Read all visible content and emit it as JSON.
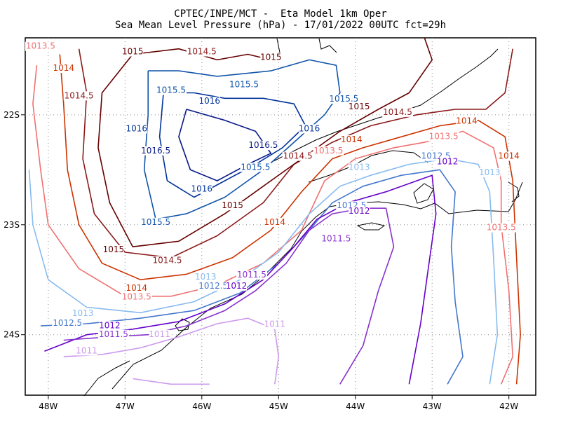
{
  "title": {
    "line1": "CPTEC/INPE/MCT -  Eta Model 1km Oper",
    "line2": "Sea Mean Level Pressure (hPa) - 17/01/2022 00UTC fct=29h"
  },
  "axes": {
    "x_ticks": [
      "48W",
      "47W",
      "46W",
      "45W",
      "44W",
      "43W",
      "42W"
    ],
    "y_ticks": [
      "22S",
      "23S",
      "24S"
    ]
  },
  "colors": {
    "1011": "#cc99ee",
    "1011.5": "#8833cc",
    "1012": "#6600cc",
    "1012.5": "#4477cc",
    "1013": "#88bbee",
    "1013.5": "#f07070",
    "1014": "#cc3300",
    "1014.5": "#8b1a1a",
    "1015": "#660000",
    "1015.5": "#1155aa",
    "1016": "#003399",
    "1016.5": "#0a1a88"
  },
  "contour_labels": [
    {
      "text": "1015",
      "level": "1015",
      "lon": -46.9,
      "lat": -21.45
    },
    {
      "text": "1014.5",
      "level": "1014.5",
      "lon": -46.0,
      "lat": -21.45
    },
    {
      "text": "1015",
      "level": "1015",
      "lon": -45.1,
      "lat": -21.5
    },
    {
      "text": "1013.5",
      "level": "1013.5",
      "lon": -48.1,
      "lat": -21.4
    },
    {
      "text": "1014",
      "level": "1014",
      "lon": -47.8,
      "lat": -21.6
    },
    {
      "text": "1014.5",
      "level": "1014.5",
      "lon": -47.6,
      "lat": -21.85
    },
    {
      "text": "1015.5",
      "level": "1015.5",
      "lon": -46.4,
      "lat": -21.8
    },
    {
      "text": "1015.5",
      "level": "1015.5",
      "lon": -45.45,
      "lat": -21.75
    },
    {
      "text": "1016",
      "level": "1016",
      "lon": -45.9,
      "lat": -21.9
    },
    {
      "text": "1015.5",
      "level": "1015.5",
      "lon": -44.15,
      "lat": -21.88
    },
    {
      "text": "1015",
      "level": "1015",
      "lon": -43.95,
      "lat": -21.95
    },
    {
      "text": "1014.5",
      "level": "1014.5",
      "lon": -43.45,
      "lat": -22.0
    },
    {
      "text": "1014",
      "level": "1014",
      "lon": -42.55,
      "lat": -22.08
    },
    {
      "text": "1016",
      "level": "1016",
      "lon": -46.85,
      "lat": -22.15
    },
    {
      "text": "1016.5",
      "level": "1016.5",
      "lon": -46.6,
      "lat": -22.35
    },
    {
      "text": "1016.5",
      "level": "1016.5",
      "lon": -45.2,
      "lat": -22.3
    },
    {
      "text": "1016",
      "level": "1016",
      "lon": -44.6,
      "lat": -22.15
    },
    {
      "text": "1014",
      "level": "1014",
      "lon": -44.05,
      "lat": -22.25
    },
    {
      "text": "1014.5",
      "level": "1014.5",
      "lon": -44.75,
      "lat": -22.4
    },
    {
      "text": "1013.5",
      "level": "1013.5",
      "lon": -44.35,
      "lat": -22.35
    },
    {
      "text": "1013.5",
      "level": "1013.5",
      "lon": -42.85,
      "lat": -22.22
    },
    {
      "text": "1012.5",
      "level": "1012.5",
      "lon": -42.95,
      "lat": -22.4
    },
    {
      "text": "1012",
      "level": "1012",
      "lon": -42.8,
      "lat": -22.45
    },
    {
      "text": "1013",
      "level": "1013",
      "lon": -43.95,
      "lat": -22.5
    },
    {
      "text": "1014",
      "level": "1014",
      "lon": -42.0,
      "lat": -22.4
    },
    {
      "text": "1013",
      "level": "1013",
      "lon": -42.25,
      "lat": -22.55
    },
    {
      "text": "1015.5",
      "level": "1015.5",
      "lon": -45.3,
      "lat": -22.5
    },
    {
      "text": "1016",
      "level": "1016",
      "lon": -46.0,
      "lat": -22.7
    },
    {
      "text": "1015",
      "level": "1015",
      "lon": -45.6,
      "lat": -22.85
    },
    {
      "text": "1015.5",
      "level": "1015.5",
      "lon": -46.6,
      "lat": -23.0
    },
    {
      "text": "1014",
      "level": "1014",
      "lon": -45.05,
      "lat": -23.0
    },
    {
      "text": "1012.5",
      "level": "1012.5",
      "lon": -44.05,
      "lat": -22.85
    },
    {
      "text": "1012",
      "level": "1012",
      "lon": -43.95,
      "lat": -22.9
    },
    {
      "text": "1011.5",
      "level": "1011.5",
      "lon": -44.25,
      "lat": -23.15
    },
    {
      "text": "1013.5",
      "level": "1013.5",
      "lon": -42.1,
      "lat": -23.05
    },
    {
      "text": "1015",
      "level": "1015",
      "lon": -47.15,
      "lat": -23.25
    },
    {
      "text": "1014.5",
      "level": "1014.5",
      "lon": -46.45,
      "lat": -23.35
    },
    {
      "text": "1013",
      "level": "1013",
      "lon": -45.95,
      "lat": -23.5
    },
    {
      "text": "1011.5",
      "level": "1011.5",
      "lon": -45.35,
      "lat": -23.48
    },
    {
      "text": "1012.5",
      "level": "1012.5",
      "lon": -45.85,
      "lat": -23.58
    },
    {
      "text": "1012",
      "level": "1012",
      "lon": -45.55,
      "lat": -23.58
    },
    {
      "text": "1014",
      "level": "1014",
      "lon": -46.85,
      "lat": -23.6
    },
    {
      "text": "1013.5",
      "level": "1013.5",
      "lon": -46.85,
      "lat": -23.68
    },
    {
      "text": "1013",
      "level": "1013",
      "lon": -47.55,
      "lat": -23.83
    },
    {
      "text": "1012.5",
      "level": "1012.5",
      "lon": -47.75,
      "lat": -23.92
    },
    {
      "text": "1012",
      "level": "1012",
      "lon": -47.2,
      "lat": -23.94
    },
    {
      "text": "1011",
      "level": "1011",
      "lon": -45.05,
      "lat": -23.93
    },
    {
      "text": "1011.5",
      "level": "1011.5",
      "lon": -47.15,
      "lat": -24.02
    },
    {
      "text": "1011",
      "level": "1011",
      "lon": -46.55,
      "lat": -24.02
    },
    {
      "text": "1011",
      "level": "1011",
      "lon": -47.5,
      "lat": -24.17
    }
  ],
  "contours": [
    {
      "level": "1013.5",
      "pts": [
        [
          -48.15,
          -21.55
        ],
        [
          -48.2,
          -21.9
        ],
        [
          -48.1,
          -22.5
        ],
        [
          -48.0,
          -23.0
        ],
        [
          -47.6,
          -23.4
        ],
        [
          -47.0,
          -23.65
        ],
        [
          -46.4,
          -23.65
        ],
        [
          -45.8,
          -23.55
        ],
        [
          -45.2,
          -23.35
        ],
        [
          -44.7,
          -23.05
        ],
        [
          -44.4,
          -22.6
        ],
        [
          -44.0,
          -22.4
        ],
        [
          -43.5,
          -22.3
        ],
        [
          -43.1,
          -22.25
        ],
        [
          -42.6,
          -22.15
        ],
        [
          -42.2,
          -22.3
        ],
        [
          -42.1,
          -22.6
        ],
        [
          -42.1,
          -23.0
        ],
        [
          -42.0,
          -23.6
        ],
        [
          -41.95,
          -24.2
        ],
        [
          -42.1,
          -24.45
        ]
      ]
    },
    {
      "level": "1014",
      "pts": [
        [
          -47.85,
          -21.45
        ],
        [
          -47.8,
          -21.9
        ],
        [
          -47.75,
          -22.5
        ],
        [
          -47.6,
          -23.0
        ],
        [
          -47.3,
          -23.35
        ],
        [
          -46.8,
          -23.5
        ],
        [
          -46.2,
          -23.45
        ],
        [
          -45.6,
          -23.3
        ],
        [
          -45.1,
          -23.05
        ],
        [
          -44.7,
          -22.7
        ],
        [
          -44.3,
          -22.4
        ],
        [
          -43.9,
          -22.3
        ],
        [
          -43.4,
          -22.2
        ],
        [
          -42.9,
          -22.1
        ],
        [
          -42.4,
          -22.05
        ],
        [
          -42.05,
          -22.2
        ],
        [
          -41.95,
          -22.6
        ],
        [
          -41.9,
          -23.3
        ],
        [
          -41.85,
          -24.0
        ],
        [
          -41.9,
          -24.45
        ]
      ]
    },
    {
      "level": "1014.5",
      "pts": [
        [
          -47.6,
          -21.4
        ],
        [
          -47.5,
          -21.8
        ],
        [
          -47.55,
          -22.4
        ],
        [
          -47.4,
          -22.9
        ],
        [
          -47.0,
          -23.25
        ],
        [
          -46.4,
          -23.3
        ],
        [
          -45.8,
          -23.1
        ],
        [
          -45.2,
          -22.8
        ],
        [
          -44.8,
          -22.45
        ],
        [
          -44.3,
          -22.25
        ],
        [
          -43.8,
          -22.1
        ],
        [
          -43.2,
          -22.0
        ],
        [
          -42.7,
          -21.95
        ],
        [
          -42.3,
          -21.95
        ],
        [
          -42.05,
          -21.8
        ],
        [
          -41.95,
          -21.4
        ]
      ]
    },
    {
      "level": "1015",
      "pts": [
        [
          -46.9,
          -21.45
        ],
        [
          -47.3,
          -21.8
        ],
        [
          -47.35,
          -22.3
        ],
        [
          -47.2,
          -22.8
        ],
        [
          -46.9,
          -23.2
        ],
        [
          -46.3,
          -23.15
        ],
        [
          -45.7,
          -22.9
        ],
        [
          -45.2,
          -22.65
        ],
        [
          -44.7,
          -22.4
        ],
        [
          -44.2,
          -22.15
        ],
        [
          -43.7,
          -21.95
        ],
        [
          -43.3,
          -21.8
        ],
        [
          -43.0,
          -21.5
        ],
        [
          -43.1,
          -21.3
        ]
      ]
    },
    {
      "level": "1015",
      "pts": [
        [
          -46.9,
          -21.45
        ],
        [
          -46.3,
          -21.4
        ],
        [
          -45.8,
          -21.5
        ],
        [
          -45.4,
          -21.45
        ],
        [
          -45.1,
          -21.5
        ]
      ]
    },
    {
      "level": "1015.5",
      "pts": [
        [
          -46.7,
          -21.6
        ],
        [
          -46.7,
          -22.0
        ],
        [
          -46.75,
          -22.5
        ],
        [
          -46.6,
          -22.95
        ],
        [
          -46.2,
          -22.9
        ],
        [
          -45.7,
          -22.75
        ],
        [
          -45.2,
          -22.5
        ],
        [
          -44.8,
          -22.25
        ],
        [
          -44.4,
          -22.0
        ],
        [
          -44.2,
          -21.8
        ],
        [
          -44.25,
          -21.55
        ],
        [
          -44.6,
          -21.5
        ],
        [
          -45.1,
          -21.6
        ],
        [
          -45.8,
          -21.65
        ],
        [
          -46.3,
          -21.6
        ],
        [
          -46.7,
          -21.6
        ]
      ]
    },
    {
      "level": "1016",
      "pts": [
        [
          -46.5,
          -21.8
        ],
        [
          -46.55,
          -22.2
        ],
        [
          -46.45,
          -22.6
        ],
        [
          -46.1,
          -22.75
        ],
        [
          -45.7,
          -22.6
        ],
        [
          -45.3,
          -22.45
        ],
        [
          -44.95,
          -22.3
        ],
        [
          -44.65,
          -22.1
        ],
        [
          -44.8,
          -21.9
        ],
        [
          -45.2,
          -21.85
        ],
        [
          -45.7,
          -21.85
        ],
        [
          -46.1,
          -21.8
        ],
        [
          -46.5,
          -21.8
        ]
      ]
    },
    {
      "level": "1016.5",
      "pts": [
        [
          -46.2,
          -21.95
        ],
        [
          -46.3,
          -22.2
        ],
        [
          -46.15,
          -22.5
        ],
        [
          -45.8,
          -22.6
        ],
        [
          -45.4,
          -22.45
        ],
        [
          -45.1,
          -22.35
        ],
        [
          -45.3,
          -22.15
        ],
        [
          -45.7,
          -22.05
        ],
        [
          -46.2,
          -21.95
        ]
      ]
    },
    {
      "level": "1013",
      "pts": [
        [
          -48.25,
          -22.5
        ],
        [
          -48.2,
          -23.0
        ],
        [
          -48.0,
          -23.5
        ],
        [
          -47.5,
          -23.75
        ],
        [
          -46.8,
          -23.8
        ],
        [
          -46.1,
          -23.7
        ],
        [
          -45.5,
          -23.5
        ],
        [
          -45.0,
          -23.25
        ],
        [
          -44.6,
          -22.9
        ],
        [
          -44.2,
          -22.65
        ],
        [
          -43.8,
          -22.55
        ],
        [
          -43.3,
          -22.45
        ],
        [
          -42.8,
          -22.4
        ],
        [
          -42.4,
          -22.45
        ],
        [
          -42.25,
          -22.7
        ],
        [
          -42.2,
          -23.3
        ],
        [
          -42.15,
          -24.0
        ],
        [
          -42.25,
          -24.45
        ]
      ]
    },
    {
      "level": "1012.5",
      "pts": [
        [
          -48.1,
          -23.92
        ],
        [
          -47.5,
          -23.9
        ],
        [
          -46.8,
          -23.85
        ],
        [
          -46.1,
          -23.78
        ],
        [
          -45.5,
          -23.62
        ],
        [
          -45.0,
          -23.35
        ],
        [
          -44.6,
          -23.05
        ],
        [
          -44.3,
          -22.8
        ],
        [
          -43.9,
          -22.65
        ],
        [
          -43.4,
          -22.55
        ],
        [
          -42.9,
          -22.5
        ],
        [
          -42.7,
          -22.7
        ],
        [
          -42.75,
          -23.2
        ],
        [
          -42.7,
          -23.7
        ],
        [
          -42.6,
          -24.2
        ],
        [
          -42.8,
          -24.45
        ]
      ]
    },
    {
      "level": "1012",
      "pts": [
        [
          -48.05,
          -24.15
        ],
        [
          -47.5,
          -24.0
        ],
        [
          -46.9,
          -23.95
        ],
        [
          -46.3,
          -23.88
        ],
        [
          -45.7,
          -23.72
        ],
        [
          -45.2,
          -23.5
        ],
        [
          -44.8,
          -23.2
        ],
        [
          -44.5,
          -22.95
        ],
        [
          -44.1,
          -22.8
        ],
        [
          -43.6,
          -22.7
        ],
        [
          -43.0,
          -22.55
        ],
        [
          -42.95,
          -22.9
        ],
        [
          -43.05,
          -23.4
        ],
        [
          -43.15,
          -23.9
        ],
        [
          -43.3,
          -24.45
        ]
      ]
    },
    {
      "level": "1011.5",
      "pts": [
        [
          -47.8,
          -24.05
        ],
        [
          -47.2,
          -24.02
        ],
        [
          -46.7,
          -24.0
        ],
        [
          -46.2,
          -23.92
        ],
        [
          -45.7,
          -23.78
        ],
        [
          -45.3,
          -23.6
        ],
        [
          -44.9,
          -23.35
        ],
        [
          -44.6,
          -23.05
        ],
        [
          -44.3,
          -22.9
        ],
        [
          -43.9,
          -22.85
        ],
        [
          -43.6,
          -22.85
        ],
        [
          -43.5,
          -23.2
        ],
        [
          -43.7,
          -23.6
        ],
        [
          -43.9,
          -24.1
        ],
        [
          -44.2,
          -24.45
        ]
      ]
    },
    {
      "level": "1011",
      "pts": [
        [
          -47.8,
          -24.2
        ],
        [
          -47.3,
          -24.18
        ],
        [
          -46.8,
          -24.12
        ],
        [
          -46.3,
          -24.02
        ],
        [
          -45.8,
          -23.9
        ],
        [
          -45.4,
          -23.85
        ],
        [
          -45.05,
          -23.95
        ],
        [
          -45.0,
          -24.2
        ],
        [
          -45.05,
          -24.45
        ]
      ]
    },
    {
      "level": "1011",
      "pts": [
        [
          -46.9,
          -24.4
        ],
        [
          -46.4,
          -24.45
        ],
        [
          -45.9,
          -24.45
        ]
      ]
    }
  ]
}
